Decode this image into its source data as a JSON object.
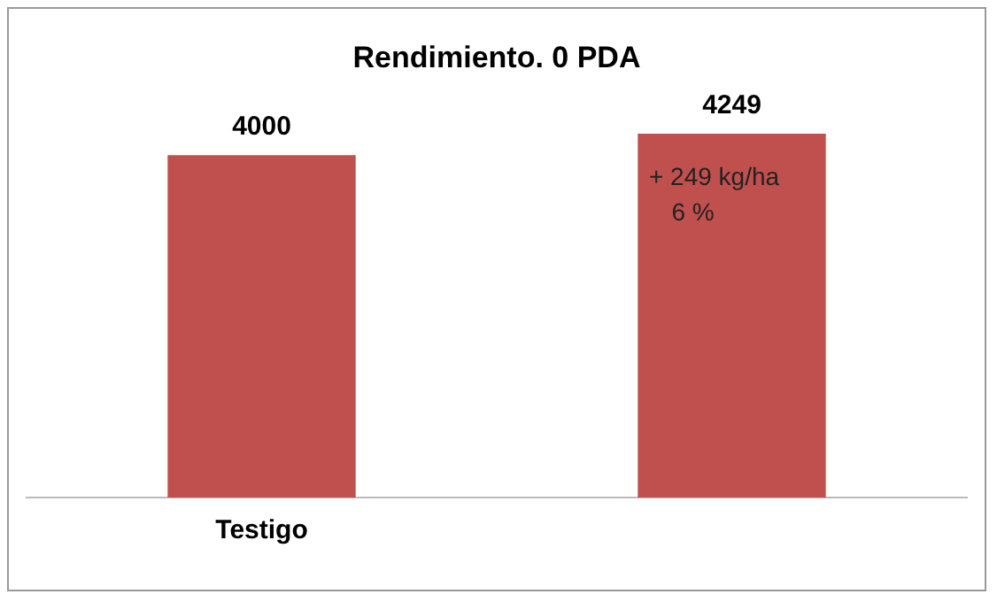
{
  "chart_data": {
    "type": "bar",
    "title": "Rendimiento. 0 PDA",
    "categories": [
      "Testigo",
      null
    ],
    "values": [
      4000,
      4249
    ],
    "color": "#c0504d",
    "data_labels": true,
    "annotations": [
      "+ 249 kg/ha",
      "6 %"
    ]
  }
}
